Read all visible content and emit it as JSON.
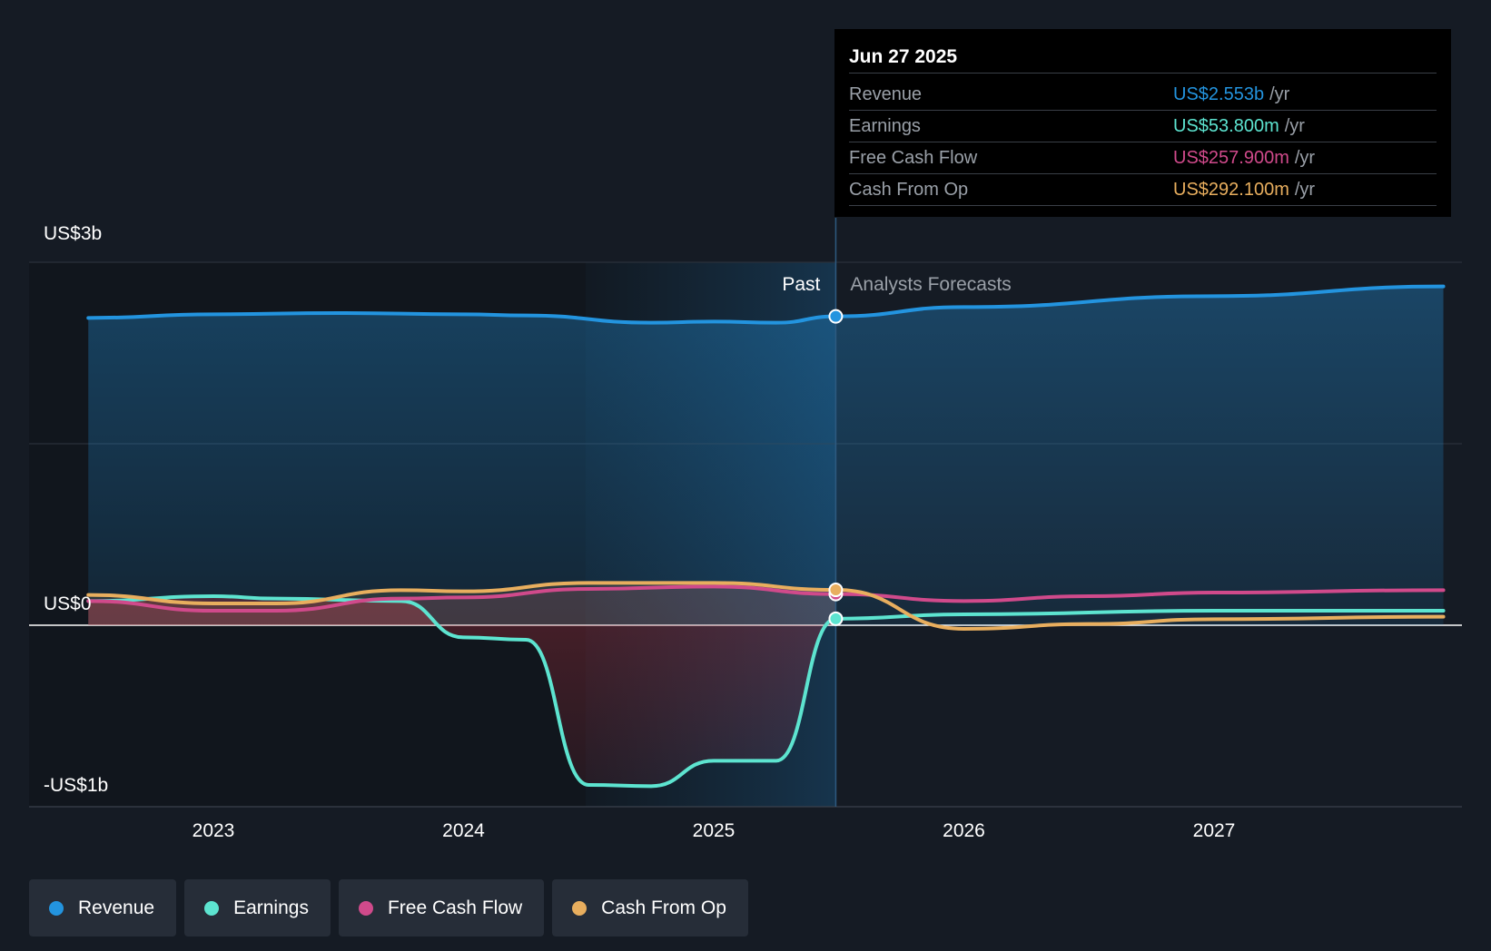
{
  "chart_data": {
    "type": "line",
    "x_axis": {
      "ticks": [
        "2023",
        "2024",
        "2025",
        "2026",
        "2027"
      ]
    },
    "y_axis": {
      "ticks": [
        "US$3b",
        "US$0",
        "-US$1b"
      ],
      "ylim": [
        -1.5,
        3.0
      ],
      "unit": "US$ billions"
    },
    "divider": {
      "date": "Jun 27 2025",
      "past_label": "Past",
      "forecast_label": "Analysts Forecasts"
    },
    "series": [
      {
        "name": "Revenue",
        "color": "#2394df",
        "points": [
          [
            "2022-07",
            2.54
          ],
          [
            "2023-01",
            2.57
          ],
          [
            "2023-07",
            2.58
          ],
          [
            "2024-01",
            2.57
          ],
          [
            "2024-04",
            2.56
          ],
          [
            "2024-10",
            2.5
          ],
          [
            "2025-01",
            2.51
          ],
          [
            "2025-04",
            2.5
          ],
          [
            "2025-06-27",
            2.553
          ],
          [
            "2026-01",
            2.63
          ],
          [
            "2027-01",
            2.72
          ],
          [
            "2027-12",
            2.8
          ]
        ]
      },
      {
        "name": "Earnings",
        "color": "#5de4d0",
        "points": [
          [
            "2022-07",
            0.2
          ],
          [
            "2023-01",
            0.24
          ],
          [
            "2023-04",
            0.22
          ],
          [
            "2023-10",
            0.2
          ],
          [
            "2024-01",
            -0.1
          ],
          [
            "2024-04",
            -0.12
          ],
          [
            "2024-07",
            -1.32
          ],
          [
            "2024-10",
            -1.33
          ],
          [
            "2025-01",
            -1.12
          ],
          [
            "2025-04",
            -1.12
          ],
          [
            "2025-06-27",
            0.0538
          ],
          [
            "2026-01",
            0.09
          ],
          [
            "2027-01",
            0.12
          ],
          [
            "2027-12",
            0.12
          ]
        ]
      },
      {
        "name": "Free Cash Flow",
        "color": "#d04a8b",
        "points": [
          [
            "2022-07",
            0.2
          ],
          [
            "2023-01",
            0.12
          ],
          [
            "2023-04",
            0.12
          ],
          [
            "2023-10",
            0.22
          ],
          [
            "2024-01",
            0.23
          ],
          [
            "2024-07",
            0.3
          ],
          [
            "2025-01",
            0.32
          ],
          [
            "2025-06-27",
            0.2579
          ],
          [
            "2026-01",
            0.2
          ],
          [
            "2026-07",
            0.24
          ],
          [
            "2027-01",
            0.27
          ],
          [
            "2027-12",
            0.29
          ]
        ]
      },
      {
        "name": "Cash From Op",
        "color": "#e8ae5e",
        "points": [
          [
            "2022-07",
            0.25
          ],
          [
            "2023-01",
            0.18
          ],
          [
            "2023-04",
            0.18
          ],
          [
            "2023-10",
            0.29
          ],
          [
            "2024-01",
            0.28
          ],
          [
            "2024-07",
            0.35
          ],
          [
            "2025-01",
            0.35
          ],
          [
            "2025-06-27",
            0.2921
          ],
          [
            "2026-01",
            -0.03
          ],
          [
            "2026-07",
            0.01
          ],
          [
            "2027-01",
            0.05
          ],
          [
            "2027-12",
            0.07
          ]
        ]
      }
    ],
    "legend_position": "bottom-left"
  },
  "tooltip": {
    "date": "Jun 27 2025",
    "rows": [
      {
        "label": "Revenue",
        "value": "US$2.553b",
        "unit": "/yr",
        "color": "#2394df"
      },
      {
        "label": "Earnings",
        "value": "US$53.800m",
        "unit": "/yr",
        "color": "#5de4d0"
      },
      {
        "label": "Free Cash Flow",
        "value": "US$257.900m",
        "unit": "/yr",
        "color": "#d04a8b"
      },
      {
        "label": "Cash From Op",
        "value": "US$292.100m",
        "unit": "/yr",
        "color": "#e8ae5e"
      }
    ]
  },
  "legend": [
    {
      "label": "Revenue",
      "color": "#2394df"
    },
    {
      "label": "Earnings",
      "color": "#5de4d0"
    },
    {
      "label": "Free Cash Flow",
      "color": "#d04a8b"
    },
    {
      "label": "Cash From Op",
      "color": "#e8ae5e"
    }
  ]
}
